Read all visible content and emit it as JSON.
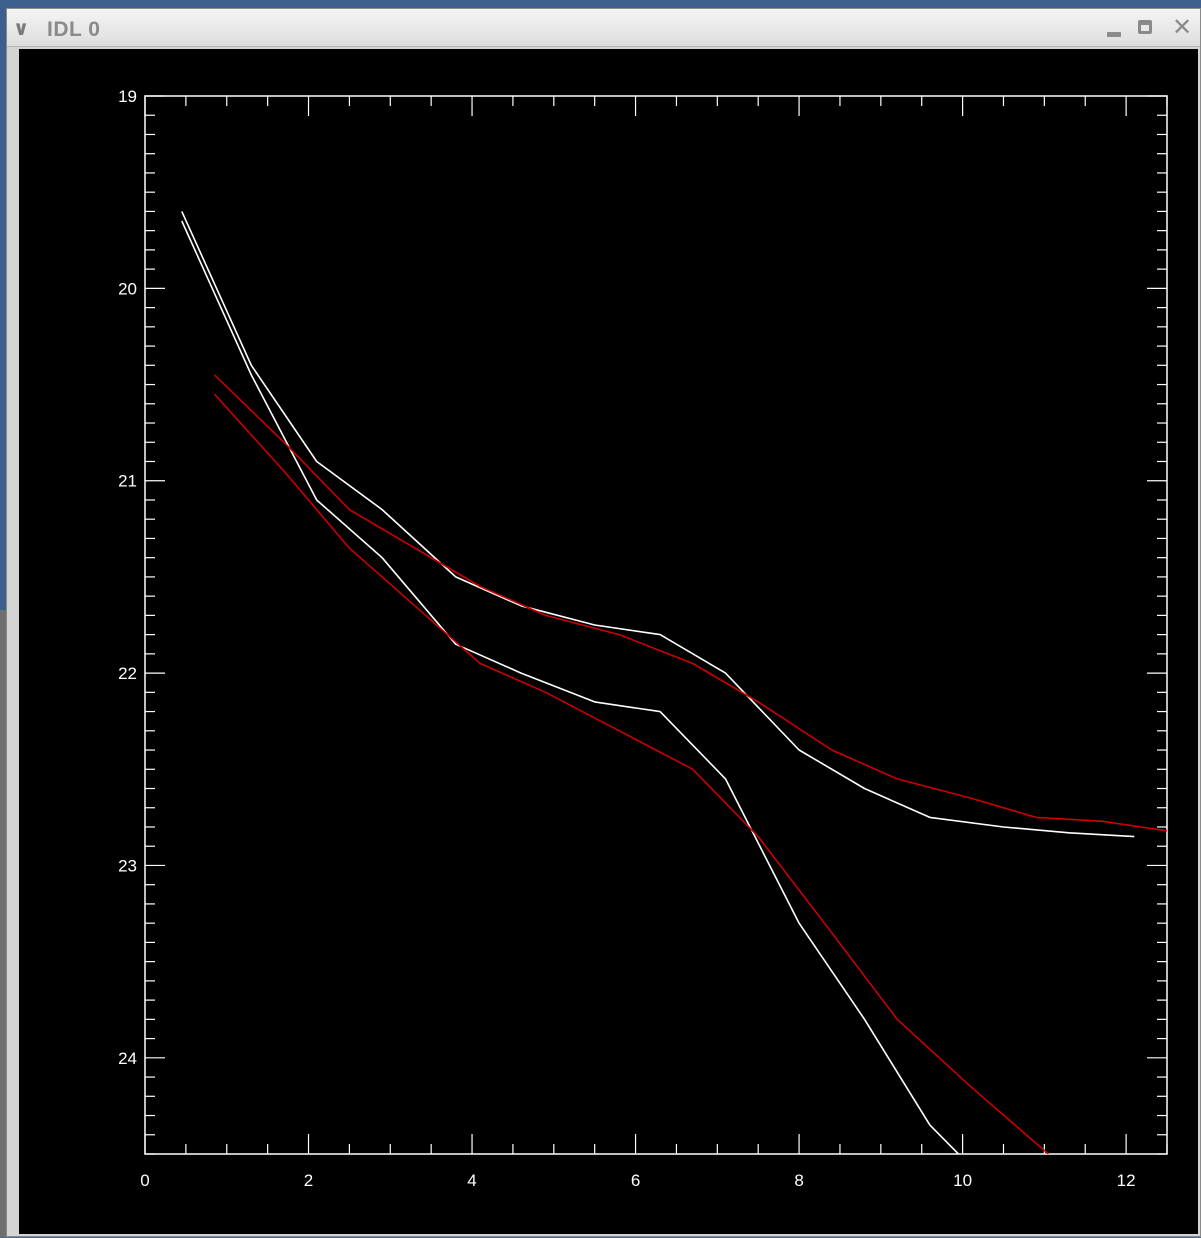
{
  "window": {
    "title": "IDL 0",
    "menu_icon": "chevron-down-icon",
    "minimize_icon": "minimize-icon",
    "maximize_icon": "maximize-icon",
    "close_icon": "close-icon"
  },
  "chart_data": {
    "type": "line",
    "title": "",
    "xlabel": "",
    "ylabel": "",
    "xlim": [
      0,
      12.5
    ],
    "ylim": [
      19,
      24.5
    ],
    "y_inverted": true,
    "x_ticks": [
      "0",
      "2",
      "4",
      "6",
      "8",
      "10",
      "12"
    ],
    "y_ticks": [
      "19",
      "20",
      "21",
      "22",
      "23",
      "24"
    ],
    "background": "#000000",
    "axis_color": "#ffffff",
    "series": [
      {
        "color": "#ffffff",
        "points": [
          [
            0.45,
            19.65
          ],
          [
            1.3,
            20.45
          ],
          [
            2.1,
            21.1
          ],
          [
            2.9,
            21.4
          ],
          [
            3.8,
            21.85
          ],
          [
            4.6,
            22.0
          ],
          [
            5.5,
            22.15
          ],
          [
            6.3,
            22.2
          ],
          [
            7.1,
            22.55
          ],
          [
            8.0,
            23.3
          ],
          [
            8.8,
            23.8
          ],
          [
            9.6,
            24.35
          ],
          [
            9.95,
            24.5
          ]
        ]
      },
      {
        "color": "#ffffff",
        "points": [
          [
            0.45,
            19.6
          ],
          [
            1.3,
            20.4
          ],
          [
            2.1,
            20.9
          ],
          [
            2.9,
            21.15
          ],
          [
            3.8,
            21.5
          ],
          [
            4.6,
            21.65
          ],
          [
            5.5,
            21.75
          ],
          [
            6.3,
            21.8
          ],
          [
            7.1,
            22.0
          ],
          [
            8.0,
            22.4
          ],
          [
            8.8,
            22.6
          ],
          [
            9.6,
            22.75
          ],
          [
            10.5,
            22.8
          ],
          [
            11.3,
            22.83
          ],
          [
            12.1,
            22.85
          ]
        ]
      },
      {
        "color": "#cc0000",
        "points": [
          [
            0.85,
            20.55
          ],
          [
            1.7,
            20.95
          ],
          [
            2.5,
            21.35
          ],
          [
            3.3,
            21.65
          ],
          [
            4.1,
            21.95
          ],
          [
            4.9,
            22.1
          ],
          [
            5.8,
            22.3
          ],
          [
            6.7,
            22.5
          ],
          [
            7.5,
            22.85
          ],
          [
            8.4,
            23.35
          ],
          [
            9.2,
            23.8
          ],
          [
            10.1,
            24.15
          ],
          [
            11.05,
            24.5
          ]
        ]
      },
      {
        "color": "#cc0000",
        "points": [
          [
            0.85,
            20.45
          ],
          [
            1.7,
            20.8
          ],
          [
            2.5,
            21.15
          ],
          [
            3.3,
            21.35
          ],
          [
            4.1,
            21.55
          ],
          [
            4.9,
            21.7
          ],
          [
            5.8,
            21.8
          ],
          [
            6.7,
            21.95
          ],
          [
            7.5,
            22.15
          ],
          [
            8.4,
            22.4
          ],
          [
            9.2,
            22.55
          ],
          [
            10.1,
            22.65
          ],
          [
            10.9,
            22.75
          ],
          [
            11.7,
            22.77
          ],
          [
            12.5,
            22.82
          ]
        ]
      }
    ]
  }
}
